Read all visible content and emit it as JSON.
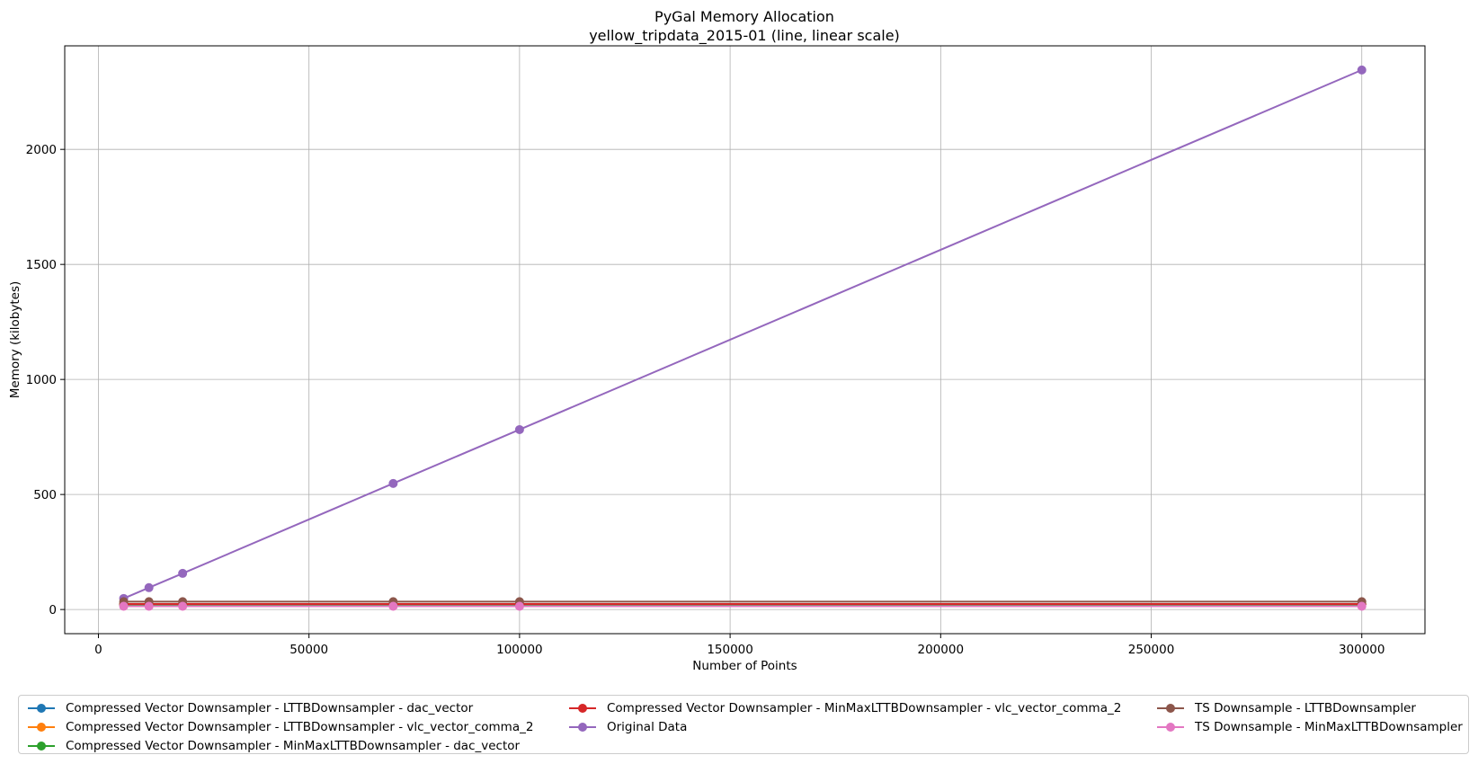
{
  "chart_data": {
    "type": "line",
    "title": "PyGal Memory Allocation",
    "subtitle": "yellow_tripdata_2015-01 (line, linear scale)",
    "xlabel": "Number of Points",
    "ylabel": "Memory (kilobytes)",
    "xlim": [
      -8000,
      315000
    ],
    "ylim": [
      -105,
      2450
    ],
    "xticks": [
      0,
      50000,
      100000,
      150000,
      200000,
      250000,
      300000
    ],
    "yticks": [
      0,
      500,
      1000,
      1500,
      2000
    ],
    "grid": true,
    "scale": "linear",
    "legend_position": "bottom",
    "x": [
      6000,
      12000,
      20000,
      70000,
      100000,
      300000
    ],
    "series": [
      {
        "name": "Compressed Vector Downsampler - LTTBDownsampler - dac_vector",
        "color": "#1f77b4",
        "values": [
          22,
          22,
          22,
          22,
          22,
          22
        ]
      },
      {
        "name": "Compressed Vector Downsampler - LTTBDownsampler - vlc_vector_comma_2",
        "color": "#ff7f0e",
        "values": [
          24,
          24,
          24,
          24,
          24,
          24
        ]
      },
      {
        "name": "Compressed Vector Downsampler - MinMaxLTTBDownsampler - dac_vector",
        "color": "#2ca02c",
        "values": [
          22,
          22,
          22,
          22,
          22,
          22
        ]
      },
      {
        "name": "Compressed Vector Downsampler - MinMaxLTTBDownsampler - vlc_vector_comma_2",
        "color": "#d62728",
        "values": [
          24,
          24,
          24,
          24,
          24,
          24
        ]
      },
      {
        "name": "Original Data",
        "color": "#9467bd",
        "values": [
          48,
          95,
          157,
          548,
          782,
          2345
        ]
      },
      {
        "name": "TS Downsample - LTTBDownsampler",
        "color": "#8c564b",
        "values": [
          34,
          34,
          34,
          34,
          34,
          34
        ]
      },
      {
        "name": "TS Downsample - MinMaxLTTBDownsampler",
        "color": "#e377c2",
        "values": [
          14,
          14,
          14,
          14,
          14,
          14
        ]
      }
    ]
  }
}
